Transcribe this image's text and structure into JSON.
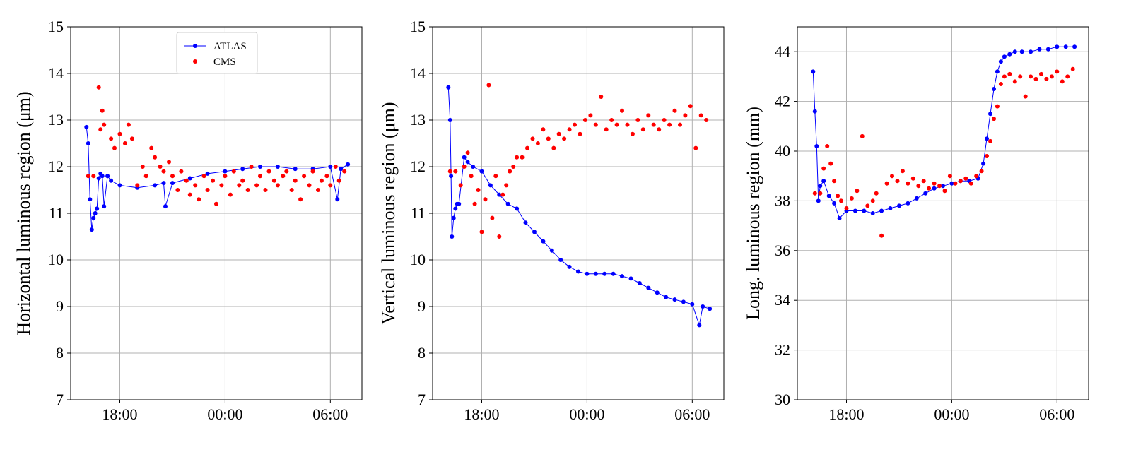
{
  "colors": {
    "atlas": "#0000ff",
    "cms": "#ff0000",
    "grid": "#b0b0b0",
    "frame": "#000000"
  },
  "legend": {
    "placement": "top-center of first panel",
    "entries": [
      {
        "label": "ATLAS",
        "style": "line+markers",
        "color": "#0000ff"
      },
      {
        "label": "CMS",
        "style": "markers",
        "color": "#ff0000"
      }
    ]
  },
  "chart_data": [
    {
      "type": "scatter",
      "ylabel": "Horizontal luminous region (μm)",
      "x_unit": "hours since 00:00 (time of day)",
      "xlim": [
        -8.8,
        7.8
      ],
      "xticks": [
        -6,
        0,
        6
      ],
      "xtick_labels": [
        "18:00",
        "00:00",
        "06:00"
      ],
      "ylim": [
        7,
        15
      ],
      "yticks": [
        7,
        8,
        9,
        10,
        11,
        12,
        13,
        14,
        15
      ],
      "ytick_labels": [
        "7",
        "8",
        "9",
        "10",
        "11",
        "12",
        "13",
        "14",
        "15"
      ],
      "grid": true,
      "series": [
        {
          "name": "ATLAS",
          "style": "line+markers",
          "x": [
            -7.9,
            -7.8,
            -7.7,
            -7.6,
            -7.5,
            -7.4,
            -7.3,
            -7.2,
            -7.1,
            -7.0,
            -6.9,
            -6.7,
            -6.5,
            -6.0,
            -5.0,
            -4.0,
            -3.5,
            -3.4,
            -3.0,
            -2.0,
            -1.0,
            0.0,
            1.0,
            2.0,
            3.0,
            4.0,
            5.0,
            6.0,
            6.4,
            6.6,
            7.0
          ],
          "y": [
            12.85,
            12.5,
            11.3,
            10.65,
            10.9,
            11.0,
            11.1,
            11.75,
            11.85,
            11.8,
            11.15,
            11.8,
            11.7,
            11.6,
            11.55,
            11.6,
            11.65,
            11.15,
            11.65,
            11.75,
            11.85,
            11.9,
            11.95,
            12.0,
            12.0,
            11.95,
            11.95,
            12.0,
            11.3,
            11.95,
            12.05
          ]
        },
        {
          "name": "CMS",
          "style": "markers",
          "x": [
            -7.8,
            -7.5,
            -7.2,
            -7.1,
            -7.0,
            -6.9,
            -6.5,
            -6.3,
            -6.0,
            -5.7,
            -5.5,
            -5.3,
            -5.0,
            -4.7,
            -4.5,
            -4.2,
            -4.0,
            -3.7,
            -3.5,
            -3.2,
            -3.0,
            -2.7,
            -2.5,
            -2.2,
            -2.0,
            -1.7,
            -1.5,
            -1.2,
            -1.0,
            -0.7,
            -0.5,
            -0.2,
            0.0,
            0.3,
            0.5,
            0.8,
            1.0,
            1.3,
            1.5,
            1.8,
            2.0,
            2.3,
            2.5,
            2.8,
            3.0,
            3.3,
            3.5,
            3.8,
            4.0,
            4.3,
            4.5,
            4.8,
            5.0,
            5.3,
            5.5,
            5.8,
            6.0,
            6.3,
            6.5,
            6.8
          ],
          "y": [
            11.8,
            11.8,
            13.7,
            12.8,
            13.2,
            12.9,
            12.6,
            12.4,
            12.7,
            12.5,
            12.9,
            12.6,
            11.6,
            12.0,
            11.8,
            12.4,
            12.2,
            12.0,
            11.9,
            12.1,
            11.8,
            11.5,
            11.9,
            11.7,
            11.4,
            11.6,
            11.3,
            11.8,
            11.5,
            11.7,
            11.2,
            11.6,
            11.8,
            11.4,
            11.9,
            11.6,
            11.7,
            11.5,
            12.0,
            11.6,
            11.8,
            11.5,
            11.9,
            11.7,
            11.6,
            11.8,
            11.9,
            11.5,
            11.7,
            11.3,
            11.8,
            11.6,
            11.9,
            11.5,
            11.7,
            11.8,
            11.6,
            12.0,
            11.7,
            11.9
          ]
        }
      ]
    },
    {
      "type": "scatter",
      "ylabel": "Vertical luminous region (μm)",
      "x_unit": "hours since 00:00 (time of day)",
      "xlim": [
        -8.8,
        7.8
      ],
      "xticks": [
        -6,
        0,
        6
      ],
      "xtick_labels": [
        "18:00",
        "00:00",
        "06:00"
      ],
      "ylim": [
        7,
        15
      ],
      "yticks": [
        7,
        8,
        9,
        10,
        11,
        12,
        13,
        14,
        15
      ],
      "ytick_labels": [
        "7",
        "8",
        "9",
        "10",
        "11",
        "12",
        "13",
        "14",
        "15"
      ],
      "grid": true,
      "series": [
        {
          "name": "ATLAS",
          "style": "line+markers",
          "x": [
            -7.9,
            -7.8,
            -7.75,
            -7.7,
            -7.6,
            -7.5,
            -7.4,
            -7.3,
            -7.0,
            -6.8,
            -6.5,
            -6.0,
            -5.5,
            -5.0,
            -4.5,
            -4.0,
            -3.5,
            -3.0,
            -2.5,
            -2.0,
            -1.5,
            -1.0,
            -0.5,
            0.0,
            0.5,
            1.0,
            1.5,
            2.0,
            2.5,
            3.0,
            3.5,
            4.0,
            4.5,
            5.0,
            5.5,
            6.0,
            6.4,
            6.6,
            7.0
          ],
          "y": [
            13.7,
            13.0,
            11.8,
            10.5,
            10.9,
            11.1,
            11.2,
            11.2,
            12.2,
            12.1,
            12.0,
            11.9,
            11.6,
            11.4,
            11.2,
            11.1,
            10.8,
            10.6,
            10.4,
            10.2,
            10.0,
            9.85,
            9.75,
            9.7,
            9.7,
            9.7,
            9.7,
            9.65,
            9.6,
            9.5,
            9.4,
            9.3,
            9.2,
            9.15,
            9.1,
            9.05,
            8.6,
            9.0,
            8.95
          ]
        },
        {
          "name": "CMS",
          "style": "markers",
          "x": [
            -7.8,
            -7.5,
            -7.2,
            -7.0,
            -6.8,
            -6.6,
            -6.4,
            -6.2,
            -6.0,
            -5.8,
            -5.6,
            -5.4,
            -5.2,
            -5.0,
            -4.8,
            -4.6,
            -4.4,
            -4.2,
            -4.0,
            -3.7,
            -3.4,
            -3.1,
            -2.8,
            -2.5,
            -2.2,
            -1.9,
            -1.6,
            -1.3,
            -1.0,
            -0.7,
            -0.4,
            -0.1,
            0.2,
            0.5,
            0.8,
            1.1,
            1.4,
            1.7,
            2.0,
            2.3,
            2.6,
            2.9,
            3.2,
            3.5,
            3.8,
            4.1,
            4.4,
            4.7,
            5.0,
            5.3,
            5.6,
            5.9,
            6.2,
            6.5,
            6.8
          ],
          "y": [
            11.9,
            11.9,
            11.6,
            12.0,
            12.3,
            11.8,
            11.2,
            11.5,
            10.6,
            11.3,
            13.75,
            10.9,
            11.8,
            10.5,
            11.4,
            11.6,
            11.9,
            12.0,
            12.2,
            12.2,
            12.4,
            12.6,
            12.5,
            12.8,
            12.6,
            12.4,
            12.7,
            12.6,
            12.8,
            12.9,
            12.7,
            13.0,
            13.1,
            12.9,
            13.5,
            12.8,
            13.0,
            12.9,
            13.2,
            12.9,
            12.7,
            13.0,
            12.8,
            13.1,
            12.9,
            12.8,
            13.0,
            12.9,
            13.2,
            12.9,
            13.1,
            13.3,
            12.4,
            13.1,
            13.0
          ]
        }
      ]
    },
    {
      "type": "scatter",
      "ylabel": "Long. luminous region (mm)",
      "x_unit": "hours since 00:00 (time of day)",
      "xlim": [
        -8.8,
        7.8
      ],
      "xticks": [
        -6,
        0,
        6
      ],
      "xtick_labels": [
        "18:00",
        "00:00",
        "06:00"
      ],
      "ylim": [
        30,
        45
      ],
      "yticks": [
        30,
        32,
        34,
        36,
        38,
        40,
        42,
        44
      ],
      "ytick_labels": [
        "30",
        "32",
        "34",
        "36",
        "38",
        "40",
        "42",
        "44"
      ],
      "grid": true,
      "series": [
        {
          "name": "ATLAS",
          "style": "line+markers",
          "x": [
            -7.9,
            -7.8,
            -7.7,
            -7.6,
            -7.5,
            -7.3,
            -7.0,
            -6.7,
            -6.4,
            -6.0,
            -5.5,
            -5.0,
            -4.5,
            -4.0,
            -3.5,
            -3.0,
            -2.5,
            -2.0,
            -1.5,
            -1.0,
            -0.5,
            0.0,
            0.5,
            1.0,
            1.5,
            1.8,
            2.0,
            2.2,
            2.4,
            2.6,
            2.8,
            3.0,
            3.3,
            3.6,
            4.0,
            4.5,
            5.0,
            5.5,
            6.0,
            6.5,
            7.0
          ],
          "y": [
            43.2,
            41.6,
            40.2,
            38.0,
            38.6,
            38.8,
            38.2,
            37.9,
            37.3,
            37.6,
            37.6,
            37.6,
            37.5,
            37.6,
            37.7,
            37.8,
            37.9,
            38.1,
            38.3,
            38.5,
            38.6,
            38.7,
            38.8,
            38.8,
            38.9,
            39.5,
            40.5,
            41.5,
            42.5,
            43.2,
            43.6,
            43.8,
            43.9,
            44.0,
            44.0,
            44.0,
            44.1,
            44.1,
            44.2,
            44.2,
            44.2
          ]
        },
        {
          "name": "CMS",
          "style": "markers",
          "x": [
            -7.8,
            -7.5,
            -7.3,
            -7.1,
            -6.9,
            -6.7,
            -6.5,
            -6.3,
            -6.0,
            -5.7,
            -5.4,
            -5.1,
            -4.8,
            -4.5,
            -4.3,
            -4.0,
            -3.7,
            -3.4,
            -3.1,
            -2.8,
            -2.5,
            -2.2,
            -1.9,
            -1.6,
            -1.3,
            -1.0,
            -0.7,
            -0.4,
            -0.1,
            0.2,
            0.5,
            0.8,
            1.1,
            1.4,
            1.7,
            2.0,
            2.2,
            2.4,
            2.6,
            2.8,
            3.0,
            3.3,
            3.6,
            3.9,
            4.2,
            4.5,
            4.8,
            5.1,
            5.4,
            5.7,
            6.0,
            6.3,
            6.6,
            6.9
          ],
          "y": [
            38.3,
            38.3,
            39.3,
            40.2,
            39.5,
            38.8,
            38.2,
            38.0,
            37.7,
            38.1,
            38.4,
            40.6,
            37.8,
            38.0,
            38.3,
            36.6,
            38.7,
            39.0,
            38.8,
            39.2,
            38.7,
            38.9,
            38.6,
            38.8,
            38.5,
            38.7,
            38.6,
            38.4,
            39.0,
            38.7,
            38.8,
            38.9,
            38.7,
            39.0,
            39.2,
            39.8,
            40.4,
            41.3,
            41.8,
            42.7,
            43.0,
            43.1,
            42.8,
            43.0,
            42.2,
            43.0,
            42.9,
            43.1,
            42.9,
            43.0,
            43.2,
            42.8,
            43.0,
            43.3
          ]
        }
      ]
    }
  ]
}
